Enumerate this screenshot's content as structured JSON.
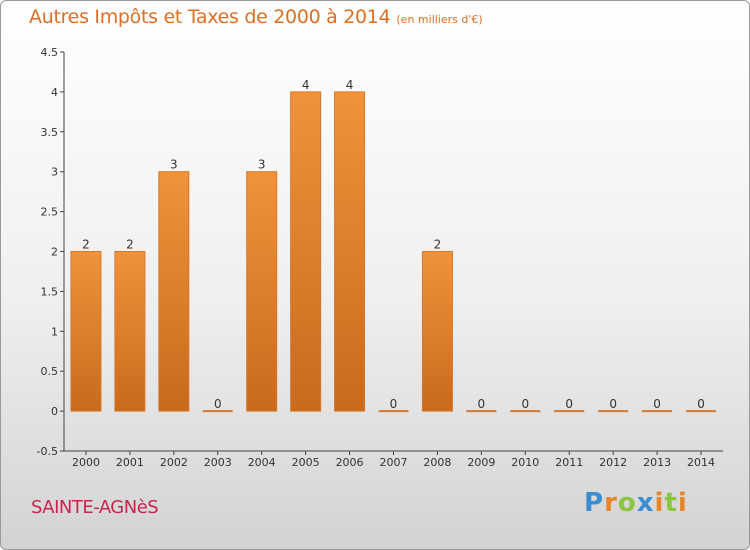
{
  "chart_data": {
    "type": "bar",
    "title": "Autres Impôts et Taxes de 2000 à 2014",
    "subtitle": "(en milliers d'€)",
    "categories": [
      "2000",
      "2001",
      "2002",
      "2003",
      "2004",
      "2005",
      "2006",
      "2007",
      "2008",
      "2009",
      "2010",
      "2011",
      "2012",
      "2013",
      "2014"
    ],
    "values": [
      2,
      2,
      3,
      0,
      3,
      4,
      4,
      0,
      2,
      0,
      0,
      0,
      0,
      0,
      0
    ],
    "data_labels": [
      "2",
      "2",
      "3",
      "0",
      "3",
      "4",
      "4",
      "0",
      "2",
      "0",
      "0",
      "0",
      "0",
      "0",
      "0"
    ],
    "ylim": [
      -0.5,
      4.5
    ],
    "y_ticks": [
      "4.5",
      "4",
      "3.5",
      "3",
      "2.5",
      "2",
      "1.5",
      "1",
      "0.5",
      "0",
      "-0.5"
    ],
    "y_tick_values": [
      4.5,
      4,
      3.5,
      3,
      2.5,
      2,
      1.5,
      1,
      0.5,
      0,
      -0.5
    ],
    "grid": false,
    "bar_color": "#f0933a",
    "bar_color_dark": "#c96a1c"
  },
  "footer": {
    "commune": "SAINTE-AGNèS",
    "brand": [
      "P",
      "r",
      "o",
      "x",
      "i",
      "t",
      "i"
    ],
    "brand_colors": [
      "#3b8dd1",
      "#e8852b",
      "#8cc63e",
      "#3b8dd1",
      "#e8852b",
      "#8cc63e",
      "#e8852b"
    ]
  }
}
